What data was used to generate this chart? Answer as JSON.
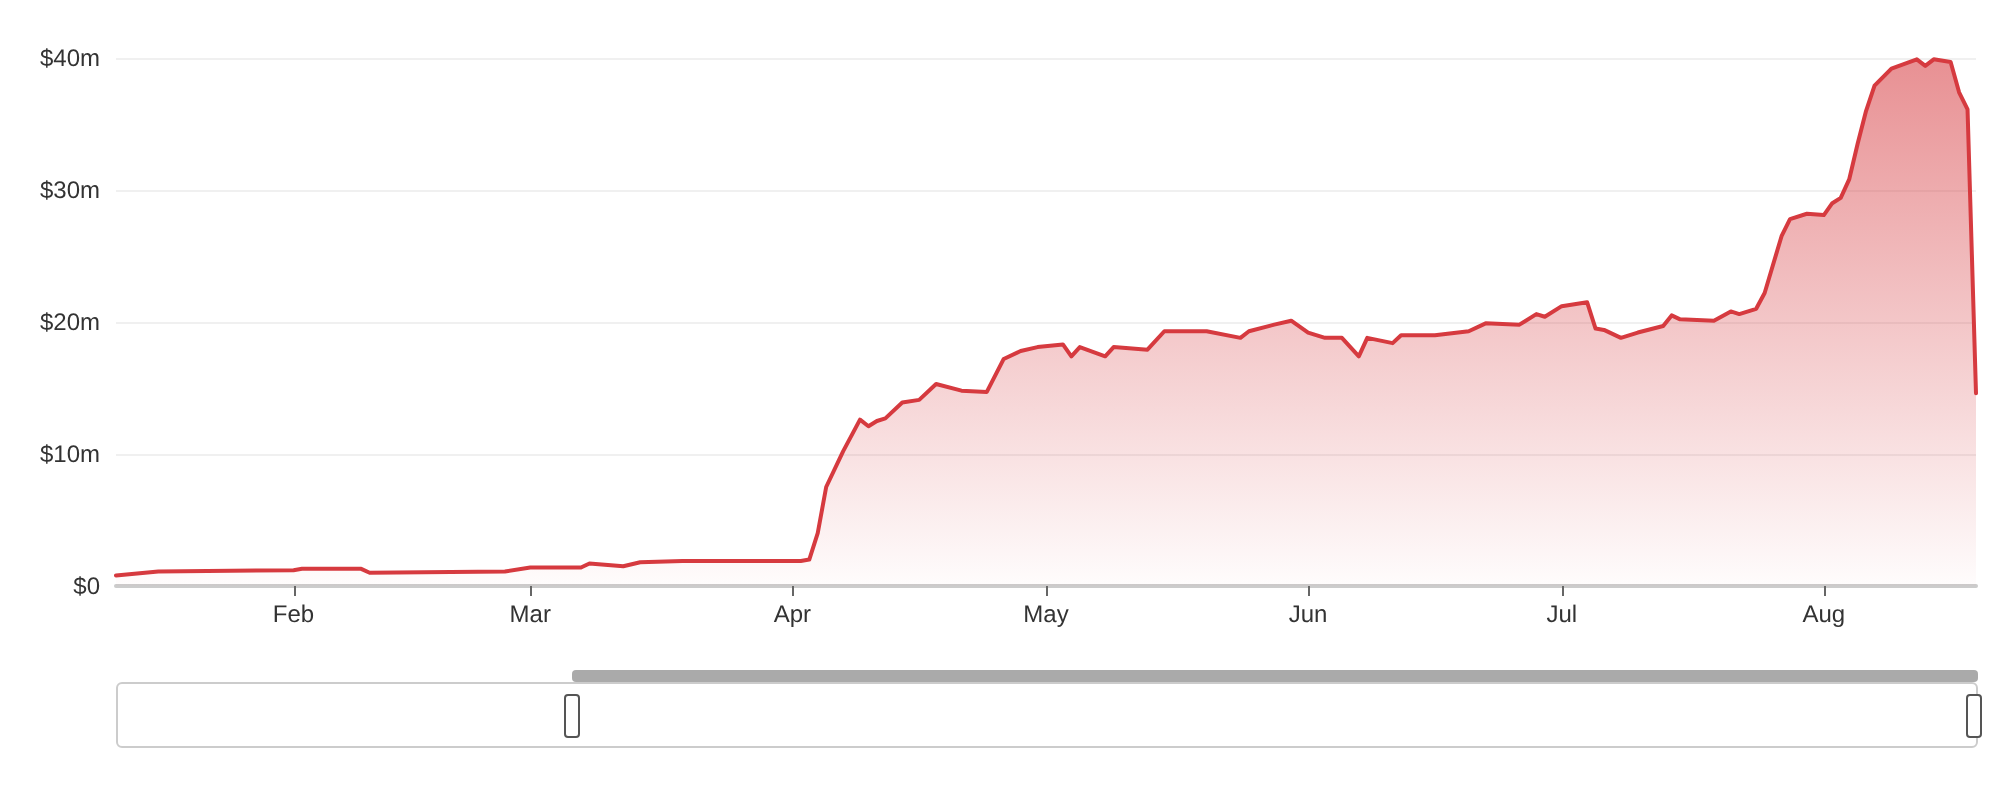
{
  "chart_data": {
    "type": "area",
    "color": "#d63a3f",
    "x": [
      "--01-11",
      "--01-16",
      "--02-01",
      "--02-02",
      "--02-09",
      "--02-10",
      "--02-26",
      "--03-01",
      "--03-07",
      "--03-08",
      "--03-12",
      "--03-14",
      "--03-19",
      "--04-02",
      "--04-03",
      "--04-04",
      "--04-05",
      "--04-07",
      "--04-09",
      "--04-10",
      "--04-11",
      "--04-12",
      "--04-14",
      "--04-16",
      "--04-18",
      "--04-21",
      "--04-24",
      "--04-26",
      "--04-28",
      "--04-30",
      "--05-03",
      "--05-04",
      "--05-05",
      "--05-08",
      "--05-09",
      "--05-13",
      "--05-15",
      "--05-20",
      "--05-24",
      "--05-25",
      "--05-28",
      "--05-30",
      "--06-01",
      "--06-03",
      "--06-05",
      "--06-07",
      "--06-08",
      "--06-11",
      "--06-12",
      "--06-16",
      "--06-20",
      "--06-22",
      "--06-26",
      "--06-28",
      "--06-29",
      "--07-01",
      "--07-04",
      "--07-05",
      "--07-06",
      "--07-08",
      "--07-10",
      "--07-13",
      "--07-14",
      "--07-15",
      "--07-19",
      "--07-21",
      "--07-22",
      "--07-24",
      "--07-25",
      "--07-27",
      "--07-28",
      "--07-30",
      "--08-01",
      "--08-02",
      "--08-03",
      "--08-04",
      "--08-05",
      "--08-06",
      "--08-07",
      "--08-09",
      "--08-12",
      "--08-13",
      "--08-14",
      "--08-16",
      "--08-17",
      "--08-18",
      "--08-19"
    ],
    "values": [
      0.8,
      1.1,
      1.2,
      1.3,
      1.3,
      1.0,
      1.1,
      1.4,
      1.4,
      1.7,
      1.5,
      1.8,
      1.9,
      1.9,
      2.0,
      4.0,
      7.5,
      10.2,
      12.6,
      12.1,
      12.5,
      12.7,
      13.9,
      14.1,
      15.3,
      14.8,
      14.7,
      17.2,
      17.8,
      18.1,
      18.3,
      17.4,
      18.1,
      17.4,
      18.1,
      17.9,
      19.3,
      19.3,
      18.8,
      19.3,
      19.8,
      20.1,
      19.2,
      18.8,
      18.8,
      17.4,
      18.8,
      18.4,
      19.0,
      19.0,
      19.3,
      19.9,
      19.8,
      20.6,
      20.4,
      21.2,
      21.5,
      19.5,
      19.4,
      18.8,
      19.2,
      19.7,
      20.5,
      20.2,
      20.1,
      20.8,
      20.6,
      21.0,
      22.2,
      26.5,
      27.8,
      28.2,
      28.1,
      29.0,
      29.4,
      30.8,
      33.5,
      36.0,
      37.9,
      39.2,
      39.9,
      39.4,
      39.9,
      39.7,
      37.4,
      36.1,
      14.6
    ],
    "xlim": [
      "--01-11",
      "--08-19"
    ],
    "xticks": [
      {
        "value": "--02-01",
        "label": "Feb"
      },
      {
        "value": "--03-01",
        "label": "Mar"
      },
      {
        "value": "--04-01",
        "label": "Apr"
      },
      {
        "value": "--05-01",
        "label": "May"
      },
      {
        "value": "--06-01",
        "label": "Jun"
      },
      {
        "value": "--07-01",
        "label": "Jul"
      },
      {
        "value": "--08-01",
        "label": "Aug"
      }
    ],
    "ylim": [
      0,
      40
    ],
    "yticks": [
      {
        "value": 0,
        "label": "$0"
      },
      {
        "value": 10,
        "label": "$10m"
      },
      {
        "value": 20,
        "label": "$20m"
      },
      {
        "value": 30,
        "label": "$30m"
      },
      {
        "value": 40,
        "label": "$40m"
      }
    ],
    "grid": "y",
    "marker": "none",
    "line_style": "solid"
  }
}
